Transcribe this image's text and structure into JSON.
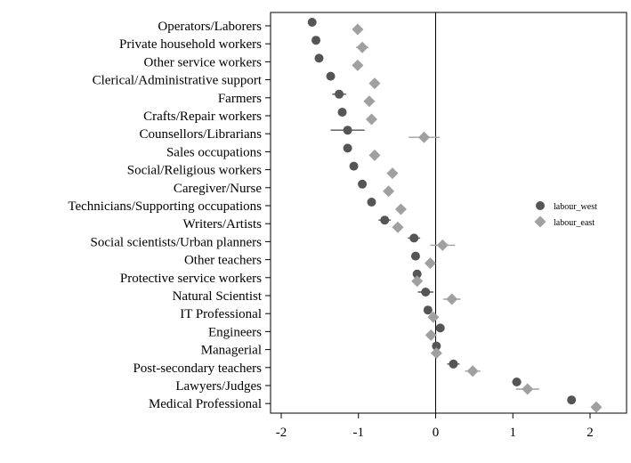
{
  "chart_data": {
    "type": "scatter",
    "title": "",
    "xlabel": "",
    "ylabel": "",
    "xlim": [
      -2.0,
      2.1
    ],
    "x_ticks": [
      -2,
      -1,
      0,
      1,
      2
    ],
    "x_tick_labels": [
      "-2",
      "-1",
      "0",
      "1",
      "2"
    ],
    "reference_line_x": 0,
    "grid": false,
    "legend_position": "right",
    "categories": [
      "Operators/Laborers",
      "Private household workers",
      "Other service workers",
      "Clerical/Administrative support",
      "Farmers",
      "Crafts/Repair workers",
      "Counsellors/Librarians",
      "Sales occupations",
      "Social/Religious workers",
      "Caregiver/Nurse",
      "Technicians/Supporting occupations",
      "Writers/Artists",
      "Social scientists/Urban planners",
      "Other teachers",
      "Protective service workers",
      "Natural Scientist",
      "IT Professional",
      "Engineers",
      "Managerial",
      "Post-secondary teachers",
      "Lawyers/Judges",
      "Medical Professional"
    ],
    "series": [
      {
        "name": "labour_west",
        "marker": "circle",
        "color": "#555555",
        "values": [
          -1.6,
          -1.55,
          -1.51,
          -1.36,
          -1.25,
          -1.21,
          -1.14,
          -1.14,
          -1.06,
          -0.95,
          -0.83,
          -0.66,
          -0.28,
          -0.26,
          -0.24,
          -0.13,
          -0.1,
          0.06,
          0.01,
          0.23,
          1.05,
          1.76
        ],
        "ci_low": [
          -1.62,
          -1.58,
          -1.53,
          -1.39,
          -1.34,
          -1.24,
          -1.36,
          -1.17,
          -1.09,
          -0.98,
          -0.87,
          -0.74,
          -0.36,
          -0.31,
          -0.28,
          -0.23,
          -0.14,
          0.03,
          -0.02,
          0.15,
          0.99,
          1.71
        ],
        "ci_high": [
          -1.58,
          -1.52,
          -1.49,
          -1.33,
          -1.16,
          -1.18,
          -0.92,
          -1.11,
          -1.03,
          -0.92,
          -0.79,
          -0.58,
          -0.2,
          -0.21,
          -0.2,
          -0.03,
          -0.06,
          0.09,
          0.04,
          0.31,
          1.11,
          1.81
        ]
      },
      {
        "name": "labour_east",
        "marker": "diamond",
        "color": "#a0a0a0",
        "values": [
          -1.01,
          -0.95,
          -1.01,
          -0.79,
          -0.86,
          -0.83,
          -0.15,
          -0.79,
          -0.56,
          -0.61,
          -0.45,
          -0.49,
          0.09,
          -0.07,
          -0.24,
          0.21,
          -0.03,
          -0.06,
          0.01,
          0.48,
          1.19,
          2.08
        ],
        "ci_low": [
          -1.04,
          -1.03,
          -1.04,
          -0.82,
          -0.93,
          -0.86,
          -0.35,
          -0.82,
          -0.59,
          -0.64,
          -0.48,
          -0.56,
          -0.07,
          -0.1,
          -0.27,
          0.1,
          -0.06,
          -0.09,
          -0.02,
          0.38,
          1.04,
          2.03
        ],
        "ci_high": [
          -0.98,
          -0.87,
          -0.98,
          -0.76,
          -0.79,
          -0.8,
          0.05,
          -0.76,
          -0.53,
          -0.58,
          -0.42,
          -0.42,
          0.25,
          -0.04,
          -0.21,
          0.32,
          0.0,
          -0.03,
          0.04,
          0.58,
          1.34,
          2.13
        ]
      }
    ]
  }
}
